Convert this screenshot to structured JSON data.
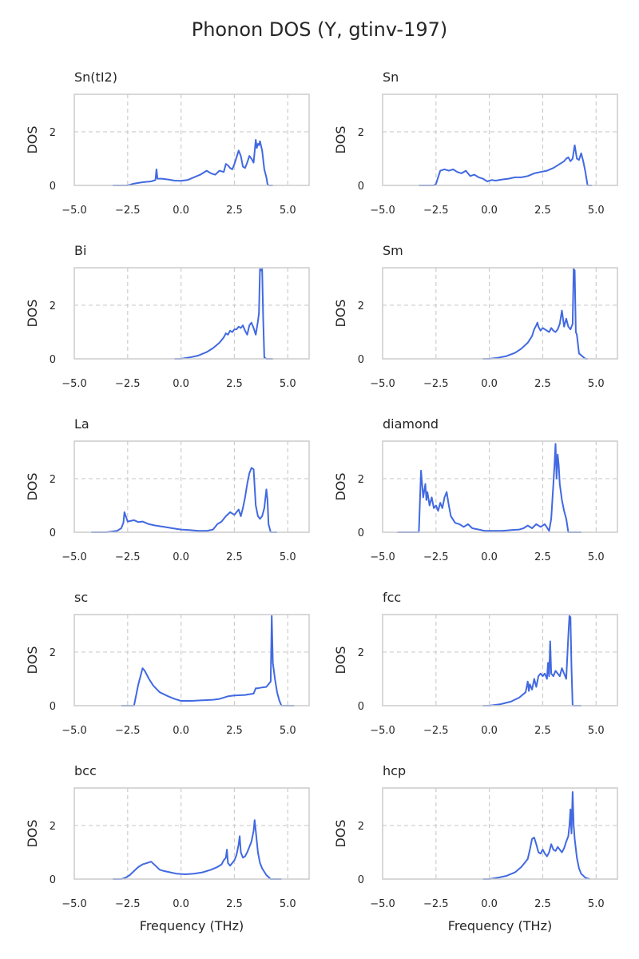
{
  "title": "Phonon DOS (Y, gtinv-197)",
  "colors": {
    "line": "#4169e1",
    "grid": "#cccccc",
    "axis": "#cccccc",
    "text": "#262626"
  },
  "chart_data": [
    {
      "type": "line",
      "title": "Sn(tI2)",
      "xlabel": "",
      "ylabel": "DOS",
      "xlim": [
        -5,
        6
      ],
      "ylim": [
        0,
        3.4
      ],
      "xticks": [
        -5,
        -2.5,
        0,
        2.5,
        5
      ],
      "xtick_labels": [
        "−5.0",
        "−2.5",
        "0.0",
        "2.5",
        "5.0"
      ],
      "yticks": [
        0,
        2
      ],
      "ytick_labels": [
        "0",
        "2"
      ],
      "grid": true,
      "x": [
        -3.2,
        -2.5,
        -2.2,
        -1.8,
        -1.4,
        -1.2,
        -1.15,
        -1.1,
        -0.9,
        -0.6,
        -0.3,
        0,
        0.3,
        0.6,
        0.9,
        1.2,
        1.4,
        1.6,
        1.8,
        2.0,
        2.1,
        2.2,
        2.3,
        2.4,
        2.5,
        2.7,
        2.8,
        2.9,
        3.0,
        3.1,
        3.2,
        3.3,
        3.4,
        3.5,
        3.55,
        3.6,
        3.65,
        3.7,
        3.8,
        3.9,
        4.0,
        4.05,
        4.1,
        4.3
      ],
      "values": [
        0,
        0,
        0.07,
        0.12,
        0.15,
        0.2,
        0.6,
        0.25,
        0.25,
        0.22,
        0.18,
        0.17,
        0.2,
        0.3,
        0.4,
        0.55,
        0.45,
        0.4,
        0.55,
        0.5,
        0.8,
        0.75,
        0.65,
        0.6,
        0.8,
        1.3,
        1.1,
        0.7,
        0.65,
        0.85,
        1.1,
        1.0,
        0.85,
        1.7,
        1.4,
        1.55,
        1.5,
        1.65,
        1.3,
        0.6,
        0.3,
        0.05,
        0,
        0
      ]
    },
    {
      "type": "line",
      "title": "Sn",
      "xlabel": "",
      "ylabel": "DOS",
      "xlim": [
        -5,
        6
      ],
      "ylim": [
        0,
        3.4
      ],
      "xticks": [
        -5,
        -2.5,
        0,
        2.5,
        5
      ],
      "xtick_labels": [
        "−5.0",
        "−2.5",
        "0.0",
        "2.5",
        "5.0"
      ],
      "yticks": [
        0,
        2
      ],
      "ytick_labels": [
        "0",
        "2"
      ],
      "grid": true,
      "x": [
        -3.3,
        -2.6,
        -2.5,
        -2.4,
        -2.3,
        -2.1,
        -1.9,
        -1.7,
        -1.5,
        -1.3,
        -1.1,
        -0.9,
        -0.7,
        -0.5,
        -0.3,
        -0.1,
        0.1,
        0.3,
        0.6,
        0.9,
        1.2,
        1.5,
        1.8,
        2.1,
        2.4,
        2.7,
        3.0,
        3.3,
        3.5,
        3.6,
        3.7,
        3.8,
        3.9,
        4.0,
        4.1,
        4.2,
        4.3,
        4.4,
        4.5,
        4.6,
        4.8
      ],
      "values": [
        0,
        0,
        0.05,
        0.3,
        0.55,
        0.6,
        0.55,
        0.6,
        0.5,
        0.45,
        0.55,
        0.35,
        0.4,
        0.3,
        0.25,
        0.15,
        0.2,
        0.18,
        0.22,
        0.25,
        0.3,
        0.3,
        0.35,
        0.45,
        0.5,
        0.55,
        0.65,
        0.8,
        0.9,
        1.0,
        1.05,
        0.9,
        1.0,
        1.5,
        1.0,
        0.95,
        1.2,
        0.9,
        0.5,
        0,
        0
      ]
    },
    {
      "type": "line",
      "title": "Bi",
      "xlabel": "",
      "ylabel": "DOS",
      "xlim": [
        -5,
        6
      ],
      "ylim": [
        0,
        3.4
      ],
      "xticks": [
        -5,
        -2.5,
        0,
        2.5,
        5
      ],
      "xtick_labels": [
        "−5.0",
        "−2.5",
        "0.0",
        "2.5",
        "5.0"
      ],
      "yticks": [
        0,
        2
      ],
      "ytick_labels": [
        "0",
        "2"
      ],
      "grid": true,
      "x": [
        -0.3,
        0,
        0.4,
        0.8,
        1.2,
        1.5,
        1.8,
        2.0,
        2.1,
        2.2,
        2.3,
        2.4,
        2.5,
        2.6,
        2.7,
        2.8,
        2.9,
        3.0,
        3.1,
        3.2,
        3.3,
        3.4,
        3.5,
        3.6,
        3.65,
        3.7,
        3.75,
        3.8,
        3.85,
        3.9,
        4.0,
        4.3
      ],
      "values": [
        0,
        0,
        0.05,
        0.12,
        0.25,
        0.4,
        0.6,
        0.8,
        0.95,
        0.9,
        1.05,
        1.0,
        1.1,
        1.1,
        1.2,
        1.15,
        1.25,
        1.05,
        0.9,
        1.25,
        1.35,
        1.15,
        0.9,
        1.4,
        1.7,
        3.35,
        3.3,
        3.35,
        1.5,
        0.05,
        0,
        0
      ]
    },
    {
      "type": "line",
      "title": "Sm",
      "xlabel": "",
      "ylabel": "DOS",
      "xlim": [
        -5,
        6
      ],
      "ylim": [
        0,
        3.4
      ],
      "xticks": [
        -5,
        -2.5,
        0,
        2.5,
        5
      ],
      "xtick_labels": [
        "−5.0",
        "−2.5",
        "0.0",
        "2.5",
        "5.0"
      ],
      "yticks": [
        0,
        2
      ],
      "ytick_labels": [
        "0",
        "2"
      ],
      "grid": true,
      "x": [
        -0.3,
        0,
        0.4,
        0.8,
        1.2,
        1.5,
        1.8,
        2.0,
        2.1,
        2.2,
        2.25,
        2.3,
        2.4,
        2.5,
        2.6,
        2.7,
        2.8,
        2.9,
        3.0,
        3.1,
        3.2,
        3.3,
        3.4,
        3.5,
        3.6,
        3.7,
        3.8,
        3.9,
        3.95,
        4.0,
        4.05,
        4.1,
        4.2,
        4.5,
        4.6
      ],
      "values": [
        0,
        0,
        0.04,
        0.1,
        0.22,
        0.38,
        0.6,
        0.85,
        1.1,
        1.25,
        1.35,
        1.2,
        1.05,
        1.15,
        1.1,
        1.05,
        1.0,
        1.15,
        1.05,
        1.0,
        1.1,
        1.3,
        1.8,
        1.2,
        1.5,
        1.2,
        1.1,
        1.3,
        3.35,
        3.3,
        1.0,
        0.9,
        0.2,
        0,
        0
      ]
    },
    {
      "type": "line",
      "title": "La",
      "xlabel": "",
      "ylabel": "DOS",
      "xlim": [
        -5,
        6
      ],
      "ylim": [
        0,
        3.4
      ],
      "xticks": [
        -5,
        -2.5,
        0,
        2.5,
        5
      ],
      "xtick_labels": [
        "−5.0",
        "−2.5",
        "0.0",
        "2.5",
        "5.0"
      ],
      "yticks": [
        0,
        2
      ],
      "ytick_labels": [
        "0",
        "2"
      ],
      "grid": true,
      "x": [
        -4.2,
        -3.5,
        -3.0,
        -2.8,
        -2.7,
        -2.65,
        -2.5,
        -2.2,
        -2.0,
        -1.8,
        -1.5,
        -1.2,
        -0.8,
        -0.4,
        0,
        0.4,
        0.8,
        1.2,
        1.5,
        1.7,
        1.9,
        2.1,
        2.3,
        2.5,
        2.6,
        2.7,
        2.8,
        2.9,
        3.0,
        3.1,
        3.2,
        3.3,
        3.4,
        3.5,
        3.6,
        3.7,
        3.8,
        3.9,
        4.0,
        4.05,
        4.1,
        4.2,
        4.5
      ],
      "values": [
        0,
        0,
        0.05,
        0.15,
        0.35,
        0.75,
        0.4,
        0.45,
        0.38,
        0.4,
        0.3,
        0.25,
        0.2,
        0.15,
        0.1,
        0.08,
        0.05,
        0.05,
        0.1,
        0.3,
        0.4,
        0.6,
        0.75,
        0.65,
        0.75,
        0.85,
        0.6,
        0.9,
        1.3,
        1.8,
        2.2,
        2.4,
        2.35,
        1.0,
        0.6,
        0.5,
        0.6,
        0.9,
        1.6,
        1.2,
        0.3,
        0,
        0
      ]
    },
    {
      "type": "line",
      "title": "diamond",
      "xlabel": "",
      "ylabel": "DOS",
      "xlim": [
        -5,
        6
      ],
      "ylim": [
        0,
        3.4
      ],
      "xticks": [
        -5,
        -2.5,
        0,
        2.5,
        5
      ],
      "xtick_labels": [
        "−5.0",
        "−2.5",
        "0.0",
        "2.5",
        "5.0"
      ],
      "yticks": [
        0,
        2
      ],
      "ytick_labels": [
        "0",
        "2"
      ],
      "grid": true,
      "x": [
        -4.3,
        -3.6,
        -3.3,
        -3.2,
        -3.1,
        -3.0,
        -2.95,
        -2.9,
        -2.8,
        -2.7,
        -2.6,
        -2.5,
        -2.4,
        -2.3,
        -2.2,
        -2.1,
        -2.0,
        -1.9,
        -1.8,
        -1.6,
        -1.4,
        -1.2,
        -1.0,
        -0.8,
        -0.5,
        -0.2,
        0.2,
        0.6,
        1.0,
        1.4,
        1.6,
        1.8,
        2.0,
        2.2,
        2.4,
        2.6,
        2.8,
        2.9,
        3.0,
        3.05,
        3.1,
        3.15,
        3.2,
        3.25,
        3.3,
        3.4,
        3.5,
        3.6,
        3.7,
        4.3
      ],
      "values": [
        0,
        0,
        0,
        2.3,
        1.3,
        1.8,
        1.2,
        1.5,
        1.0,
        1.3,
        0.9,
        1.0,
        0.8,
        1.1,
        0.9,
        1.3,
        1.5,
        1.0,
        0.6,
        0.35,
        0.3,
        0.2,
        0.3,
        0.15,
        0.1,
        0.05,
        0.05,
        0.05,
        0.08,
        0.1,
        0.15,
        0.25,
        0.15,
        0.3,
        0.2,
        0.3,
        0.05,
        0.5,
        1.8,
        2.5,
        3.3,
        2.0,
        2.9,
        2.5,
        1.8,
        1.2,
        0.8,
        0.5,
        0,
        0
      ]
    },
    {
      "type": "line",
      "title": "sc",
      "xlabel": "",
      "ylabel": "DOS",
      "xlim": [
        -5,
        6
      ],
      "ylim": [
        0,
        3.4
      ],
      "xticks": [
        -5,
        -2.5,
        0,
        2.5,
        5
      ],
      "xtick_labels": [
        "−5.0",
        "−2.5",
        "0.0",
        "2.5",
        "5.0"
      ],
      "yticks": [
        0,
        2
      ],
      "ytick_labels": [
        "0",
        "2"
      ],
      "grid": true,
      "x": [
        -2.8,
        -2.2,
        -2.1,
        -2.0,
        -1.9,
        -1.8,
        -1.7,
        -1.5,
        -1.3,
        -1.0,
        -0.6,
        -0.3,
        0,
        0.5,
        1.0,
        1.5,
        1.8,
        2.0,
        2.2,
        2.5,
        3.0,
        3.4,
        3.5,
        3.6,
        3.8,
        4.0,
        4.2,
        4.25,
        4.3,
        4.4,
        4.5,
        4.6,
        4.7,
        5.3
      ],
      "values": [
        0,
        0,
        0.4,
        0.8,
        1.1,
        1.4,
        1.3,
        1.0,
        0.75,
        0.5,
        0.35,
        0.25,
        0.18,
        0.18,
        0.2,
        0.22,
        0.25,
        0.3,
        0.35,
        0.38,
        0.4,
        0.45,
        0.65,
        0.65,
        0.68,
        0.7,
        0.9,
        3.35,
        1.6,
        1.0,
        0.5,
        0.2,
        0,
        0
      ]
    },
    {
      "type": "line",
      "title": "fcc",
      "xlabel": "",
      "ylabel": "DOS",
      "xlim": [
        -5,
        6
      ],
      "ylim": [
        0,
        3.4
      ],
      "xticks": [
        -5,
        -2.5,
        0,
        2.5,
        5
      ],
      "xtick_labels": [
        "−5.0",
        "−2.5",
        "0.0",
        "2.5",
        "5.0"
      ],
      "yticks": [
        0,
        2
      ],
      "ytick_labels": [
        "0",
        "2"
      ],
      "grid": true,
      "x": [
        -0.3,
        0,
        0.5,
        1.0,
        1.4,
        1.7,
        1.8,
        1.85,
        1.9,
        2.0,
        2.1,
        2.2,
        2.3,
        2.4,
        2.5,
        2.6,
        2.7,
        2.75,
        2.8,
        2.85,
        2.9,
        3.0,
        3.1,
        3.2,
        3.3,
        3.4,
        3.5,
        3.6,
        3.7,
        3.75,
        3.8,
        3.85,
        3.9,
        4.0,
        4.3
      ],
      "values": [
        0,
        0,
        0.05,
        0.15,
        0.3,
        0.5,
        0.9,
        0.55,
        0.8,
        0.6,
        1.0,
        0.7,
        1.1,
        1.2,
        1.1,
        1.2,
        1.0,
        1.6,
        1.1,
        2.4,
        1.2,
        1.1,
        1.3,
        1.2,
        1.1,
        1.4,
        1.2,
        1.0,
        2.6,
        3.35,
        3.3,
        1.4,
        0,
        0,
        0
      ]
    },
    {
      "type": "line",
      "title": "bcc",
      "xlabel": "",
      "ylabel": "DOS",
      "xlim": [
        -5,
        6
      ],
      "ylim": [
        0,
        3.4
      ],
      "xticks": [
        -5,
        -2.5,
        0,
        2.5,
        5
      ],
      "xtick_labels": [
        "−5.0",
        "−2.5",
        "0.0",
        "2.5",
        "5.0"
      ],
      "yticks": [
        0,
        2
      ],
      "ytick_labels": [
        "0",
        "2"
      ],
      "grid": true,
      "x": [
        -3.2,
        -2.8,
        -2.6,
        -2.4,
        -2.2,
        -2.0,
        -1.8,
        -1.6,
        -1.4,
        -1.2,
        -1.0,
        -0.8,
        -0.5,
        -0.2,
        0.2,
        0.6,
        1.0,
        1.4,
        1.7,
        1.9,
        2.0,
        2.1,
        2.15,
        2.2,
        2.3,
        2.5,
        2.6,
        2.7,
        2.75,
        2.8,
        2.9,
        3.0,
        3.1,
        3.2,
        3.3,
        3.4,
        3.45,
        3.5,
        3.6,
        3.7,
        3.8,
        4.0,
        4.2,
        4.7
      ],
      "values": [
        0,
        0,
        0.05,
        0.15,
        0.3,
        0.45,
        0.55,
        0.6,
        0.65,
        0.5,
        0.35,
        0.3,
        0.25,
        0.2,
        0.18,
        0.2,
        0.25,
        0.35,
        0.45,
        0.55,
        0.7,
        0.8,
        1.1,
        0.6,
        0.5,
        0.7,
        0.9,
        1.3,
        1.6,
        1.0,
        0.8,
        0.85,
        1.0,
        1.2,
        1.4,
        1.8,
        2.2,
        1.8,
        1.0,
        0.6,
        0.4,
        0.15,
        0,
        0
      ]
    },
    {
      "type": "line",
      "title": "hcp",
      "xlabel": "",
      "ylabel": "DOS",
      "xlim": [
        -5,
        6
      ],
      "ylim": [
        0,
        3.4
      ],
      "xticks": [
        -5,
        -2.5,
        0,
        2.5,
        5
      ],
      "xtick_labels": [
        "−5.0",
        "−2.5",
        "0.0",
        "2.5",
        "5.0"
      ],
      "yticks": [
        0,
        2
      ],
      "ytick_labels": [
        "0",
        "2"
      ],
      "grid": true,
      "x": [
        -0.3,
        0,
        0.4,
        0.8,
        1.2,
        1.5,
        1.8,
        1.9,
        2.0,
        2.1,
        2.2,
        2.3,
        2.4,
        2.5,
        2.6,
        2.7,
        2.8,
        2.9,
        3.0,
        3.1,
        3.2,
        3.3,
        3.4,
        3.5,
        3.6,
        3.7,
        3.75,
        3.8,
        3.85,
        3.9,
        3.95,
        4.0,
        4.1,
        4.2,
        4.3,
        4.5,
        4.7
      ],
      "values": [
        0,
        0,
        0.05,
        0.12,
        0.25,
        0.45,
        0.75,
        1.1,
        1.5,
        1.55,
        1.3,
        1.0,
        0.95,
        1.1,
        0.95,
        0.85,
        1.0,
        1.3,
        1.1,
        1.05,
        1.2,
        1.1,
        1.0,
        1.15,
        1.4,
        1.6,
        2.0,
        2.6,
        1.7,
        3.25,
        2.0,
        1.5,
        0.8,
        0.4,
        0.2,
        0.05,
        0
      ]
    }
  ]
}
